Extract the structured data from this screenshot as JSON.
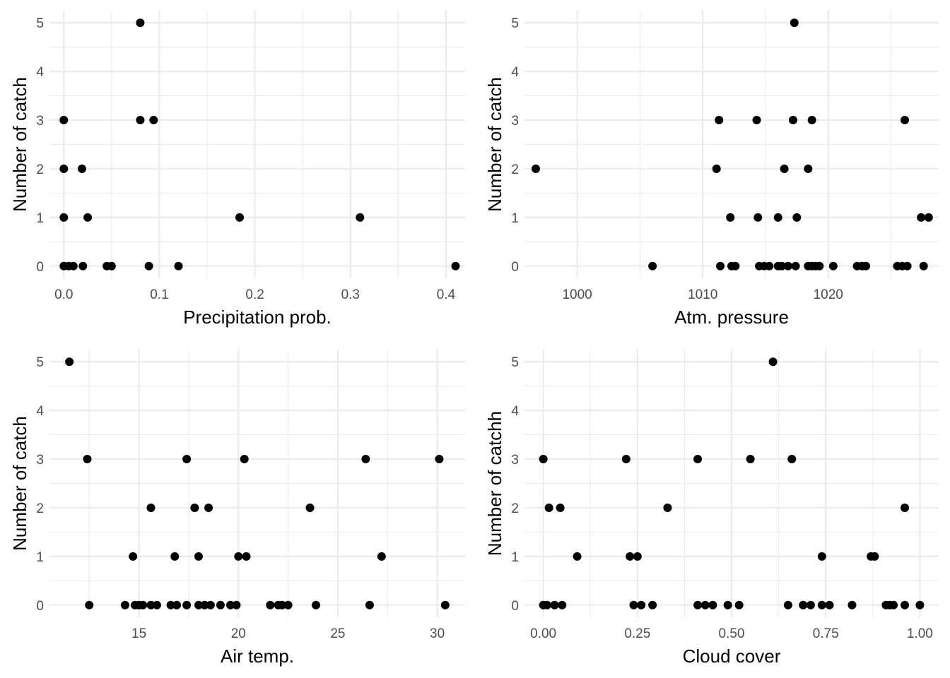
{
  "chart_data": [
    {
      "type": "scatter",
      "xlabel": "Precipitation prob.",
      "ylabel": "Number of catch",
      "xlim": [
        -0.015,
        0.42
      ],
      "ylim": [
        -0.25,
        5.25
      ],
      "xticks": [
        0.0,
        0.1,
        0.2,
        0.3,
        0.4
      ],
      "xtick_labels": [
        "0.0",
        "0.1",
        "0.2",
        "0.3",
        "0.4"
      ],
      "yticks": [
        0,
        1,
        2,
        3,
        4,
        5
      ],
      "ytick_labels": [
        "0",
        "1",
        "2",
        "3",
        "4",
        "5"
      ],
      "grid": true,
      "x": [
        0.08,
        0.0,
        0.08,
        0.094,
        0.0,
        0.019,
        0.0,
        0.025,
        0.184,
        0.31,
        0.0,
        0.005,
        0.01,
        0.02,
        0.045,
        0.05,
        0.089,
        0.12,
        0.41
      ],
      "y": [
        5,
        3,
        3,
        3,
        2,
        2,
        1,
        1,
        1,
        1,
        0,
        0,
        0,
        0,
        0,
        0,
        0,
        0,
        0
      ]
    },
    {
      "type": "scatter",
      "xlabel": "Atm. pressure",
      "ylabel": "Number of catch",
      "xlim": [
        995.8,
        1028.8
      ],
      "ylim": [
        -0.25,
        5.25
      ],
      "xticks": [
        1000,
        1010,
        1020
      ],
      "xtick_labels": [
        "1000",
        "1010",
        "1020"
      ],
      "yticks": [
        0,
        1,
        2,
        3,
        4,
        5
      ],
      "ytick_labels": [
        "0",
        "1",
        "2",
        "3",
        "4",
        "5"
      ],
      "grid": true,
      "x": [
        1017.3,
        1011.3,
        1014.3,
        1017.2,
        1018.7,
        1026.1,
        996.7,
        1011.1,
        1016.5,
        1018.4,
        1012.2,
        1014.4,
        1016.0,
        1017.5,
        1027.4,
        1028.0,
        1006.0,
        1011.4,
        1012.3,
        1012.6,
        1014.5,
        1014.9,
        1015.3,
        1016.0,
        1016.3,
        1016.8,
        1017.4,
        1018.4,
        1018.7,
        1019.0,
        1019.3,
        1020.4,
        1022.3,
        1022.7,
        1023.0,
        1025.5,
        1025.9,
        1026.3,
        1027.6
      ],
      "y": [
        5,
        3,
        3,
        3,
        3,
        3,
        2,
        2,
        2,
        2,
        1,
        1,
        1,
        1,
        1,
        1,
        0,
        0,
        0,
        0,
        0,
        0,
        0,
        0,
        0,
        0,
        0,
        0,
        0,
        0,
        0,
        0,
        0,
        0,
        0,
        0,
        0,
        0,
        0
      ]
    },
    {
      "type": "scatter",
      "xlabel": "Air temp.",
      "ylabel": "Number of catch",
      "xlim": [
        10.5,
        31.4
      ],
      "ylim": [
        -0.25,
        5.25
      ],
      "xticks": [
        15,
        20,
        25,
        30
      ],
      "xtick_labels": [
        "15",
        "20",
        "25",
        "30"
      ],
      "yticks": [
        0,
        1,
        2,
        3,
        4,
        5
      ],
      "ytick_labels": [
        "0",
        "1",
        "2",
        "3",
        "4",
        "5"
      ],
      "grid": true,
      "x": [
        11.5,
        12.4,
        17.4,
        20.3,
        26.4,
        30.1,
        15.6,
        17.8,
        18.5,
        23.6,
        14.7,
        16.8,
        18.0,
        20.0,
        20.4,
        27.2,
        12.5,
        14.3,
        14.8,
        15.0,
        15.2,
        15.6,
        15.9,
        16.6,
        16.9,
        17.4,
        18.0,
        18.3,
        18.6,
        19.1,
        19.6,
        19.9,
        21.6,
        22.0,
        22.2,
        22.5,
        23.9,
        26.6,
        30.4
      ],
      "y": [
        5,
        3,
        3,
        3,
        3,
        3,
        2,
        2,
        2,
        2,
        1,
        1,
        1,
        1,
        1,
        1,
        0,
        0,
        0,
        0,
        0,
        0,
        0,
        0,
        0,
        0,
        0,
        0,
        0,
        0,
        0,
        0,
        0,
        0,
        0,
        0,
        0,
        0,
        0
      ]
    },
    {
      "type": "scatter",
      "xlabel": "Cloud cover",
      "ylabel": "Number of catchh",
      "xlim": [
        -0.05,
        1.05
      ],
      "ylim": [
        -0.25,
        5.25
      ],
      "xticks": [
        0.0,
        0.25,
        0.5,
        0.75,
        1.0
      ],
      "xtick_labels": [
        "0.00",
        "0.25",
        "0.50",
        "0.75",
        "1.00"
      ],
      "yticks": [
        0,
        1,
        2,
        3,
        4,
        5
      ],
      "ytick_labels": [
        "0",
        "1",
        "2",
        "3",
        "4",
        "5"
      ],
      "grid": true,
      "x": [
        0.61,
        0.0,
        0.22,
        0.41,
        0.55,
        0.66,
        0.015,
        0.045,
        0.33,
        0.96,
        0.09,
        0.23,
        0.25,
        0.74,
        0.87,
        0.88,
        0.0,
        0.01,
        0.03,
        0.05,
        0.24,
        0.26,
        0.29,
        0.41,
        0.43,
        0.45,
        0.49,
        0.52,
        0.65,
        0.69,
        0.71,
        0.74,
        0.76,
        0.82,
        0.91,
        0.92,
        0.93,
        0.96,
        1.0
      ],
      "y": [
        5,
        3,
        3,
        3,
        3,
        3,
        2,
        2,
        2,
        2,
        1,
        1,
        1,
        1,
        1,
        1,
        0,
        0,
        0,
        0,
        0,
        0,
        0,
        0,
        0,
        0,
        0,
        0,
        0,
        0,
        0,
        0,
        0,
        0,
        0,
        0,
        0,
        0,
        0
      ]
    }
  ]
}
